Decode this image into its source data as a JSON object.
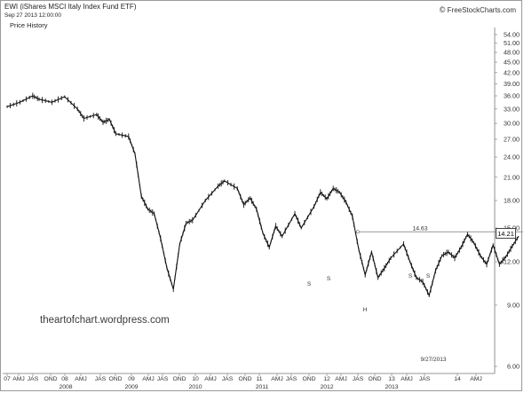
{
  "header": {
    "title": "EWI (iShares MSCI Italy Index Fund ETF)",
    "date": "Sep 27 2013 12:00:00",
    "panel_label": "Price History",
    "source": "FreeStockCharts.com",
    "copyright_symbol": "©"
  },
  "watermark": "theartofchart.wordpress.com",
  "current_price": "14.21",
  "resistance_label": "14.63",
  "last_date_label": "9/27/2013",
  "pattern_labels": [
    "S",
    "S",
    "H",
    "S",
    "S"
  ],
  "chart_data": {
    "type": "line",
    "title": "EWI (iShares MSCI Italy Index Fund ETF)",
    "y_scale": "log",
    "ylim": [
      6.0,
      56.0
    ],
    "y_ticks": [
      "54.00",
      "51.00",
      "48.00",
      "45.00",
      "42.00",
      "39.00",
      "36.00",
      "33.00",
      "30.00",
      "27.00",
      "24.00",
      "21.00",
      "18.00",
      "15.00",
      "12.00",
      "9.00",
      "6.00"
    ],
    "x_tick_labels": [
      "07",
      "AMJ",
      "JAS",
      "OND",
      "08",
      "AMJ",
      "JAS",
      "OND",
      "09",
      "AMJ",
      "JAS",
      "OND",
      "10",
      "AMJ",
      "JAS",
      "OND",
      "11",
      "AMJ",
      "JAS",
      "OND",
      "12",
      "AMJ",
      "JAS",
      "OND",
      "13",
      "AMJ",
      "JAS",
      "14",
      "AMJ"
    ],
    "year_labels": [
      "2008",
      "2009",
      "2010",
      "2011",
      "2012",
      "2013"
    ],
    "series": [
      {
        "values": [
          [
            "2007-01",
            33.5
          ],
          [
            "2007-03",
            34.5
          ],
          [
            "2007-05",
            36.0
          ],
          [
            "2007-06",
            35.2
          ],
          [
            "2007-08",
            34.5
          ],
          [
            "2007-10",
            35.8
          ],
          [
            "2007-12",
            33.0
          ],
          [
            "2008-01",
            31.0
          ],
          [
            "2008-03",
            31.8
          ],
          [
            "2008-04",
            30.2
          ],
          [
            "2008-05",
            30.8
          ],
          [
            "2008-06",
            28.0
          ],
          [
            "2008-08",
            27.5
          ],
          [
            "2008-09",
            24.5
          ],
          [
            "2008-10",
            18.5
          ],
          [
            "2008-11",
            17.0
          ],
          [
            "2008-12",
            16.5
          ],
          [
            "2009-01",
            14.0
          ],
          [
            "2009-02",
            11.5
          ],
          [
            "2009-03",
            10.0
          ],
          [
            "2009-04",
            13.5
          ],
          [
            "2009-05",
            15.5
          ],
          [
            "2009-06",
            15.8
          ],
          [
            "2009-08",
            18.0
          ],
          [
            "2009-10",
            19.8
          ],
          [
            "2009-11",
            20.5
          ],
          [
            "2010-01",
            19.5
          ],
          [
            "2010-02",
            17.5
          ],
          [
            "2010-03",
            18.3
          ],
          [
            "2010-04",
            17.0
          ],
          [
            "2010-05",
            14.5
          ],
          [
            "2010-06",
            13.2
          ],
          [
            "2010-07",
            15.2
          ],
          [
            "2010-08",
            14.2
          ],
          [
            "2010-10",
            16.5
          ],
          [
            "2010-11",
            15.0
          ],
          [
            "2011-01",
            17.3
          ],
          [
            "2011-02",
            19.0
          ],
          [
            "2011-03",
            18.2
          ],
          [
            "2011-04",
            19.5
          ],
          [
            "2011-05",
            19.0
          ],
          [
            "2011-06",
            17.8
          ],
          [
            "2011-07",
            16.2
          ],
          [
            "2011-08",
            13.0
          ],
          [
            "2011-09",
            11.0
          ],
          [
            "2011-10",
            12.8
          ],
          [
            "2011-11",
            10.8
          ],
          [
            "2011-12",
            11.5
          ],
          [
            "2012-01",
            12.3
          ],
          [
            "2012-03",
            13.5
          ],
          [
            "2012-04",
            12.0
          ],
          [
            "2012-05",
            10.8
          ],
          [
            "2012-06",
            10.5
          ],
          [
            "2012-07",
            9.6
          ],
          [
            "2012-08",
            11.3
          ],
          [
            "2012-09",
            12.5
          ],
          [
            "2012-10",
            12.8
          ],
          [
            "2012-11",
            12.3
          ],
          [
            "2012-12",
            13.2
          ],
          [
            "2013-01",
            14.4
          ],
          [
            "2013-02",
            13.6
          ],
          [
            "2013-03",
            12.5
          ],
          [
            "2013-04",
            11.8
          ],
          [
            "2013-05",
            13.4
          ],
          [
            "2013-06",
            11.8
          ],
          [
            "2013-07",
            12.4
          ],
          [
            "2013-08",
            13.3
          ],
          [
            "2013-09",
            14.21
          ]
        ]
      }
    ],
    "resistance": {
      "value": 14.63,
      "from": "2011-07",
      "to": "2013-12"
    },
    "legend": "none",
    "grid": false
  }
}
